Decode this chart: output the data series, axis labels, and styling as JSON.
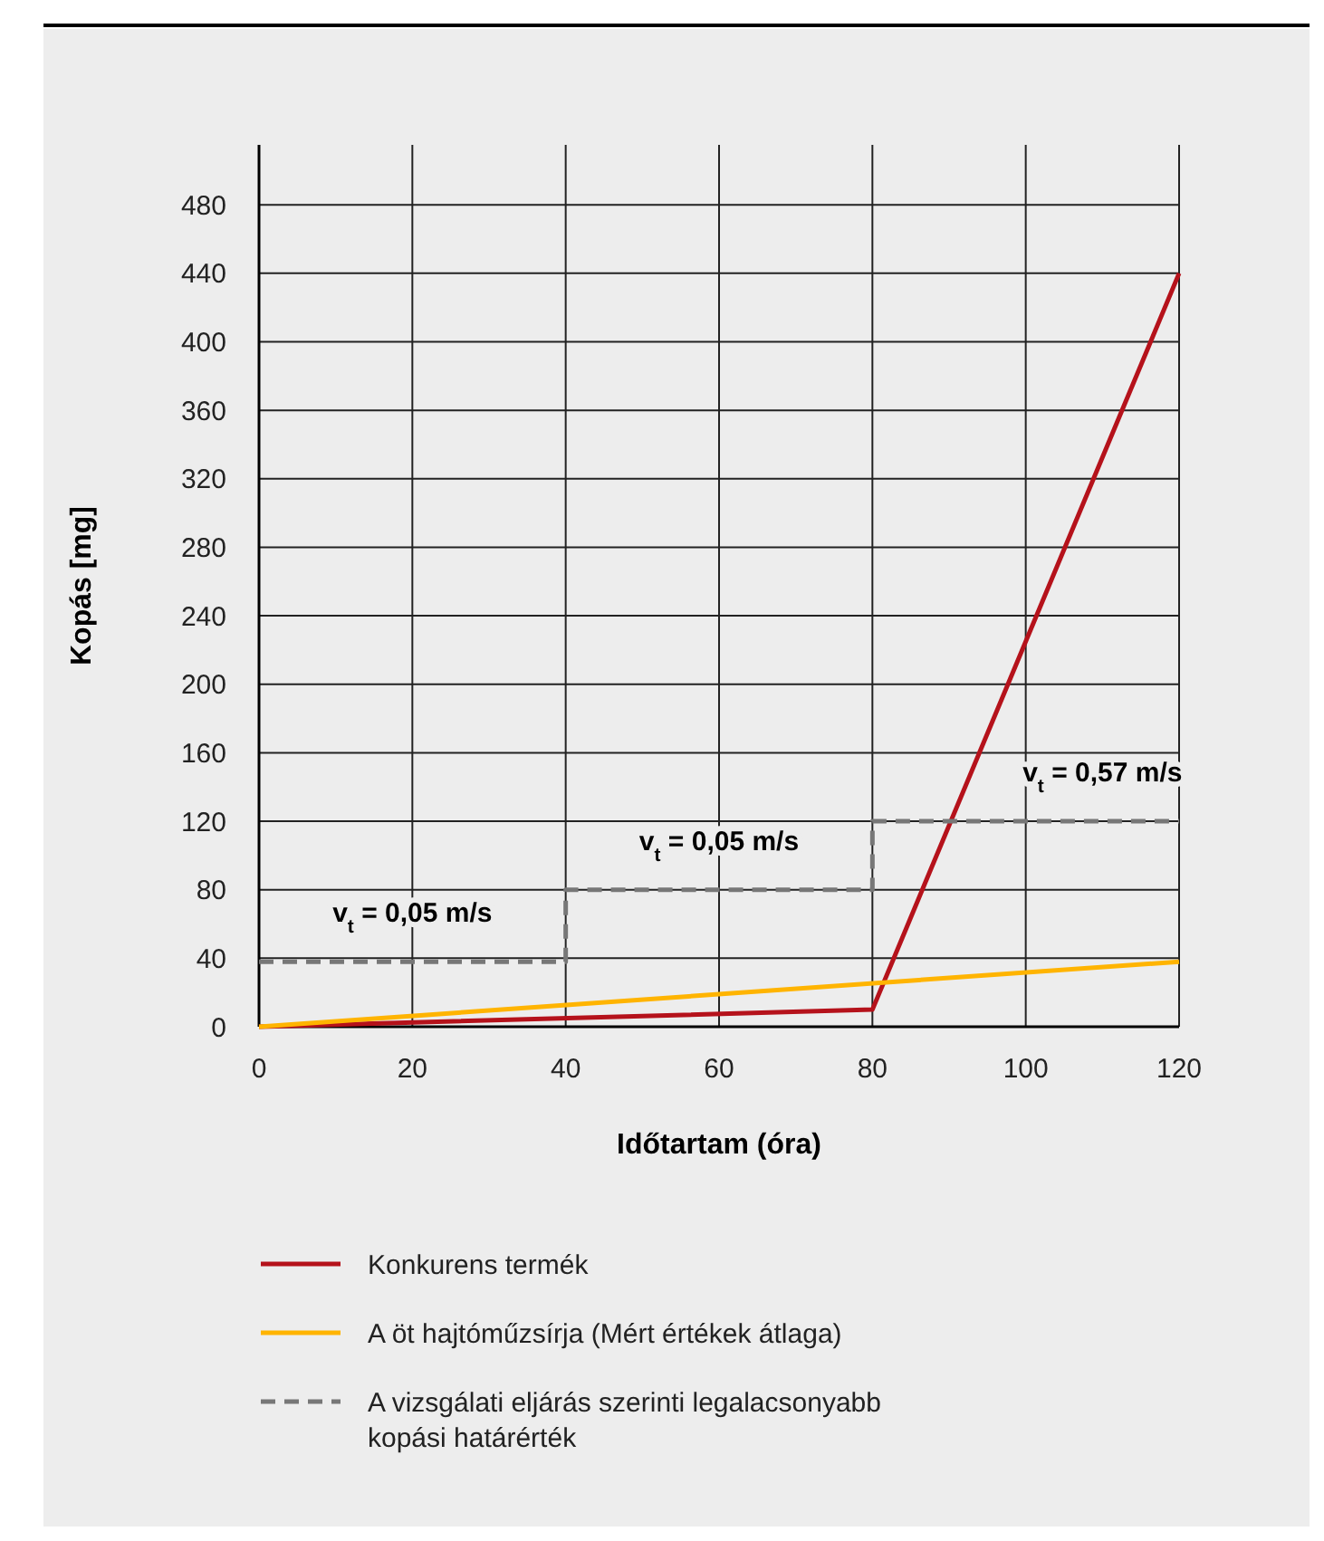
{
  "chart_data": {
    "type": "line",
    "xlabel": "Időtartam (óra)",
    "ylabel": "Kopás [mg]",
    "xlim": [
      0,
      120
    ],
    "xticks": [
      0,
      20,
      40,
      60,
      80,
      100,
      120
    ],
    "ylim": [
      0,
      515
    ],
    "yticks": [
      0,
      40,
      80,
      120,
      160,
      200,
      240,
      280,
      320,
      360,
      400,
      440,
      480
    ],
    "grid": true,
    "legend": "bottom",
    "line_style": "solid",
    "series": [
      {
        "name": "Konkurens termék",
        "color": "#b5121b",
        "x": [
          0,
          80,
          120
        ],
        "values": [
          0,
          10,
          440
        ]
      },
      {
        "name": "A öt hajtóműzsírja (Mért értékek átlaga)",
        "color": "#ffb400",
        "x": [
          0,
          120
        ],
        "values": [
          0,
          38
        ]
      },
      {
        "name": "A vizsgálati eljárás szerinti legalacsonyabb kopási határérték",
        "type": "step",
        "color": "#777777",
        "line_style": "dashed",
        "x": [
          0,
          40,
          80,
          120
        ],
        "values": [
          38,
          80,
          120,
          120
        ]
      }
    ],
    "annotations": [
      {
        "text": "v$_{t}$ = 0,05 m/s",
        "x": 20,
        "y": 38
      },
      {
        "text": "v$_{t}$ = 0,05 m/s",
        "x": 60,
        "y": 80
      },
      {
        "text": "v$_{t}$ = 0,57 m/s",
        "x": 110,
        "y": 120
      }
    ]
  }
}
